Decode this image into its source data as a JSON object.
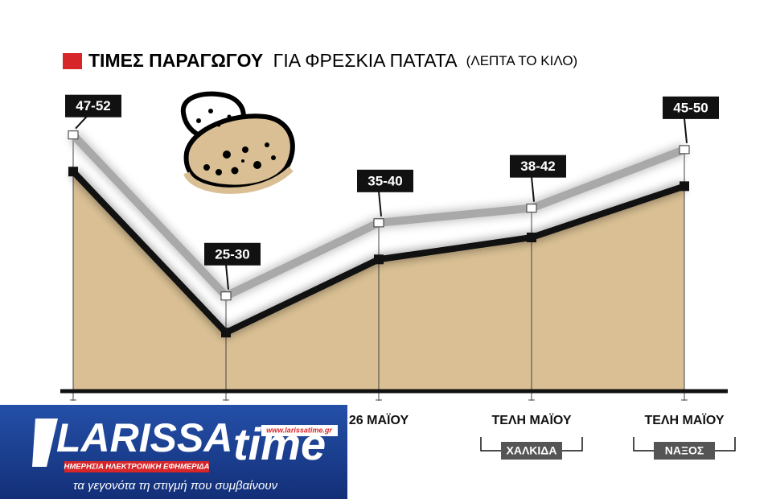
{
  "chart_data": {
    "type": "line",
    "title": "ΤΙΜΕΣ ΠΑΡΑΓΩΓΟΥ",
    "subtitle": "ΓΙΑ ΦΡΕΣΚΙΑ ΠΑΤΑΤΑ",
    "unit_note": "(ΛΕΠΤΑ ΤΟ ΚΙΛΟ)",
    "categories": [
      null,
      null,
      "26 ΜΑΪΟΥ",
      "ΤΕΛΗ ΜΑΪΟΥ",
      "ΤΕΛΗ ΜΑΪΟΥ"
    ],
    "sublabels": [
      null,
      null,
      null,
      "ΧΑΛΚΙΔΑ",
      "ΝΑΞΟΣ"
    ],
    "series": [
      {
        "color": "#111111",
        "area_color": "#d9bf93",
        "values": [
          47,
          25,
          35,
          38,
          45
        ]
      },
      {
        "color": "#a9a9a9",
        "values": [
          52,
          30,
          40,
          42,
          50
        ]
      }
    ],
    "value_labels": [
      "47-52",
      "25-30",
      "35-40",
      "38-42",
      "45-50"
    ],
    "ylim": [
      17,
      70
    ]
  },
  "watermark": {
    "brand_left": "LARISSA",
    "brand_right": "time",
    "url": "www.larissatime.gr",
    "tagline": "ΗΜΕΡΗΣΙΑ ΗΛΕΚΤΡΟΝΙΚΗ ΕΦΗΜΕΡΙΔΑ",
    "slogan": "τα γεγονότα τη στιγμή που συμβαίνουν"
  }
}
